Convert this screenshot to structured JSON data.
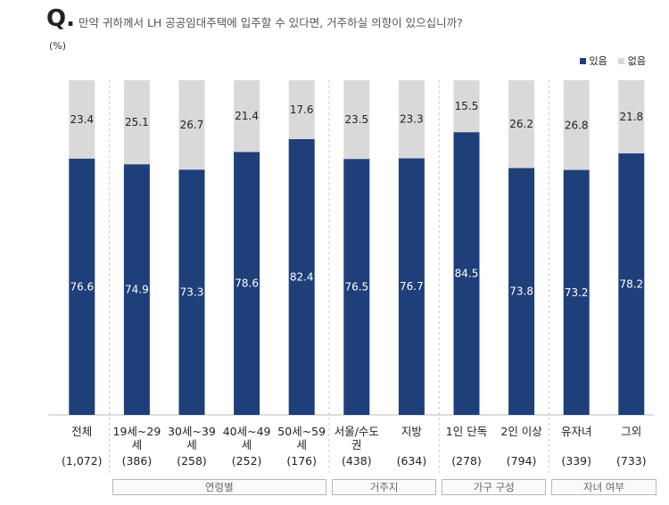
{
  "header": {
    "q_mark": "Q.",
    "question": "만약 귀하께서 LH 공공임대주택에 입주할 수 있다면, 거주하실 의향이 있으십니까?",
    "unit": "(%)"
  },
  "colors": {
    "yes": "#1f3f7a",
    "no": "#d9d9d9",
    "yes_text": "#ffffff",
    "no_text": "#222222"
  },
  "chart_data": {
    "type": "bar",
    "stacked": true,
    "legend_position": "top-right",
    "categories": [
      {
        "label1": "전체",
        "label2": "",
        "n": "(1,072)"
      },
      {
        "label1": "19세~29",
        "label2": "세",
        "n": "(386)"
      },
      {
        "label1": "30세~39",
        "label2": "세",
        "n": "(258)"
      },
      {
        "label1": "40세~49",
        "label2": "세",
        "n": "(252)"
      },
      {
        "label1": "50세~59",
        "label2": "세",
        "n": "(176)"
      },
      {
        "label1": "서울/수도",
        "label2": "권",
        "n": "(438)"
      },
      {
        "label1": "지방",
        "label2": "",
        "n": "(634)"
      },
      {
        "label1": "1인 단독",
        "label2": "",
        "n": "(278)"
      },
      {
        "label1": "2인 이상",
        "label2": "",
        "n": "(794)"
      },
      {
        "label1": "유자녀",
        "label2": "",
        "n": "(339)"
      },
      {
        "label1": "그외",
        "label2": "",
        "n": "(733)"
      }
    ],
    "series": [
      {
        "name": "있음",
        "values": [
          76.6,
          74.9,
          73.3,
          78.6,
          82.4,
          76.5,
          76.7,
          84.5,
          73.8,
          73.2,
          78.2
        ]
      },
      {
        "name": "없음",
        "values": [
          23.4,
          25.1,
          26.7,
          21.4,
          17.6,
          23.5,
          23.3,
          15.5,
          26.2,
          26.8,
          21.8
        ]
      }
    ],
    "ylim": [
      0,
      100
    ],
    "groups": [
      {
        "label": "연령별",
        "start": 1,
        "end": 4
      },
      {
        "label": "거주지",
        "start": 5,
        "end": 6
      },
      {
        "label": "가구 구성",
        "start": 7,
        "end": 8
      },
      {
        "label": "자녀 여부",
        "start": 9,
        "end": 10
      }
    ],
    "separators_after": [
      0,
      4,
      6,
      8
    ]
  }
}
